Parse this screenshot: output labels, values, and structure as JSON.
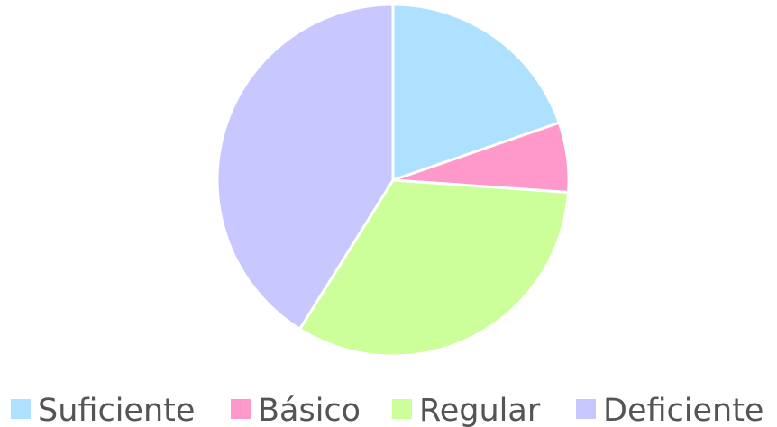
{
  "chart_data": {
    "type": "pie",
    "categories": [
      "Suficiente",
      "Básico",
      "Regular",
      "Deficiente"
    ],
    "values": [
      19.7,
      6.4,
      32.8,
      41.1
    ],
    "colors": [
      "#aee0ff",
      "#ff99cc",
      "#ccff99",
      "#c8c8ff"
    ],
    "legend": "bottom"
  }
}
